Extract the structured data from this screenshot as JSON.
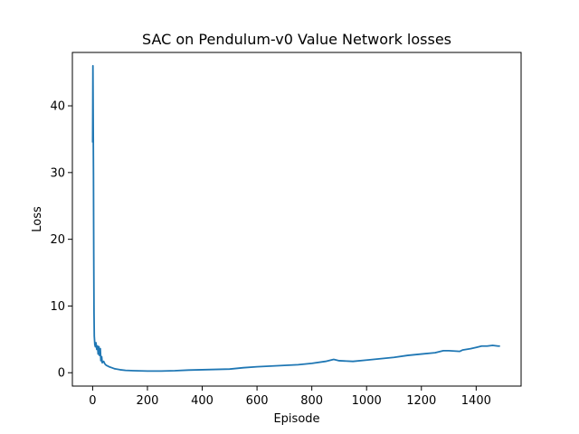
{
  "chart_data": {
    "type": "line",
    "title": "SAC on Pendulum-v0 Value Network losses",
    "xlabel": "Episode",
    "ylabel": "Loss",
    "xlim": [
      -74,
      1564
    ],
    "ylim": [
      -2,
      48
    ],
    "xticks": [
      0,
      200,
      400,
      600,
      800,
      1000,
      1200,
      1400
    ],
    "yticks": [
      0,
      10,
      20,
      30,
      40
    ],
    "grid": false,
    "legend": "none",
    "series": [
      {
        "color": "#1f77b4",
        "x": [
          0,
          1,
          2,
          3,
          4,
          5,
          6,
          8,
          10,
          12,
          15,
          18,
          20,
          23,
          25,
          28,
          30,
          33,
          35,
          40,
          45,
          50,
          60,
          70,
          80,
          100,
          120,
          150,
          200,
          250,
          300,
          350,
          400,
          450,
          500,
          550,
          600,
          650,
          700,
          750,
          800,
          850,
          880,
          900,
          950,
          1000,
          1050,
          1100,
          1150,
          1200,
          1250,
          1280,
          1300,
          1340,
          1350,
          1380,
          1400,
          1420,
          1440,
          1460,
          1480,
          1487
        ],
        "y": [
          34.5,
          46,
          38,
          30,
          18,
          9,
          5.5,
          4.2,
          3.9,
          4.5,
          3.5,
          4.0,
          2.8,
          3.9,
          2.6,
          3.6,
          1.8,
          2.4,
          1.5,
          1.7,
          1.3,
          1.1,
          0.9,
          0.75,
          0.6,
          0.45,
          0.35,
          0.3,
          0.25,
          0.25,
          0.3,
          0.4,
          0.45,
          0.5,
          0.55,
          0.75,
          0.9,
          1.0,
          1.1,
          1.2,
          1.4,
          1.7,
          2.0,
          1.8,
          1.7,
          1.9,
          2.1,
          2.3,
          2.6,
          2.8,
          3.0,
          3.3,
          3.3,
          3.2,
          3.4,
          3.6,
          3.8,
          4.0,
          4.0,
          4.1,
          4.0,
          4.0
        ]
      }
    ]
  }
}
